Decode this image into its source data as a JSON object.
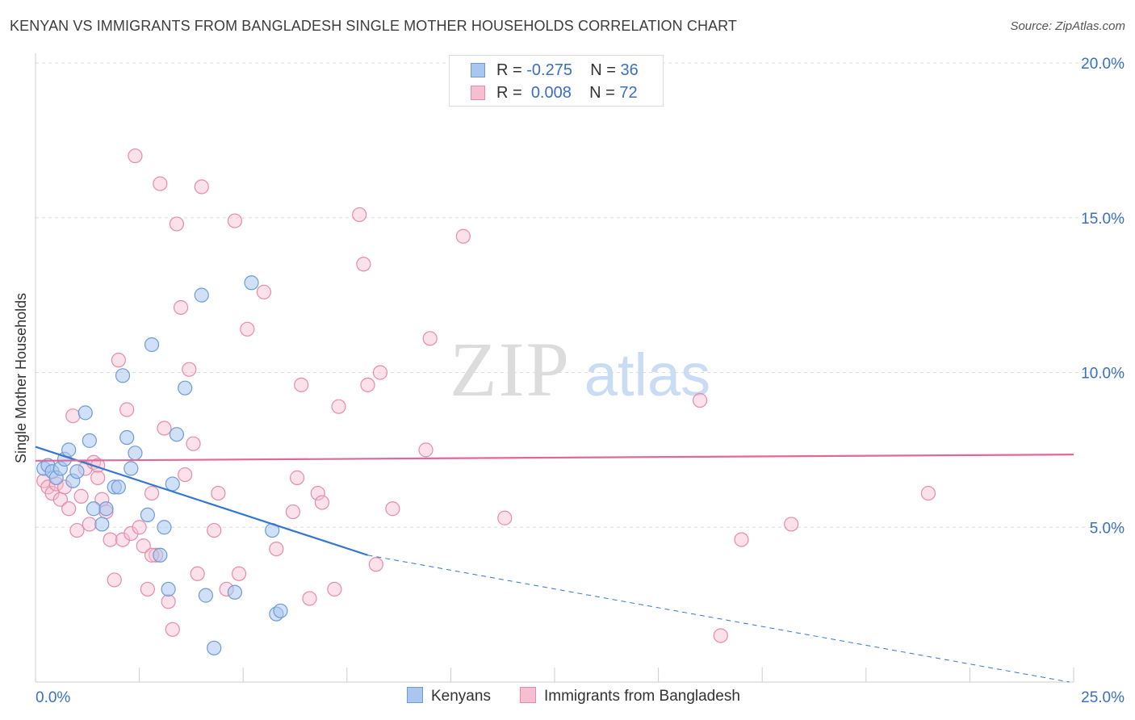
{
  "title": "KENYAN VS IMMIGRANTS FROM BANGLADESH SINGLE MOTHER HOUSEHOLDS CORRELATION CHART",
  "source": "Source: ZipAtlas.com",
  "watermark": {
    "zip": "ZIP",
    "atlas": "atlas"
  },
  "legend": {
    "r_label": "R =",
    "n_label": "N =",
    "kenyans": {
      "r": "-0.275",
      "n": "36"
    },
    "bangladesh": {
      "r": "0.008",
      "n": "72"
    }
  },
  "bottom_legend": {
    "kenyans": "Kenyans",
    "bangladesh": "Immigrants from Bangladesh"
  },
  "colors": {
    "blue_fill": "#a9c7ee",
    "blue_stroke": "#6d9bd8",
    "blue_line": "#3477d0",
    "pink_fill": "#f6bfd0",
    "pink_stroke": "#e88aab",
    "pink_line": "#e0699a",
    "tick_text": "#3a6fc4",
    "grid": "#dddddd"
  },
  "chart_data": {
    "type": "scatter",
    "title": "KENYAN VS IMMIGRANTS FROM BANGLADESH SINGLE MOTHER HOUSEHOLDS CORRELATION CHART",
    "xlabel": "",
    "ylabel": "Single Mother Households",
    "xlim": [
      0,
      25
    ],
    "ylim": [
      0,
      20
    ],
    "x_tick_labels": [
      "0.0%",
      "25.0%"
    ],
    "y_ticks": [
      5,
      10,
      15,
      20
    ],
    "y_tick_labels": [
      "5.0%",
      "10.0%",
      "15.0%",
      "20.0%"
    ],
    "grid": true,
    "series": [
      {
        "name": "Kenyans",
        "color": "#a9c7ee",
        "points": [
          [
            0.2,
            6.9
          ],
          [
            0.3,
            7.0
          ],
          [
            0.4,
            6.8
          ],
          [
            0.5,
            6.6
          ],
          [
            0.6,
            6.9
          ],
          [
            0.7,
            7.2
          ],
          [
            0.8,
            7.5
          ],
          [
            0.9,
            6.5
          ],
          [
            1.0,
            6.8
          ],
          [
            1.2,
            8.7
          ],
          [
            1.3,
            7.8
          ],
          [
            1.4,
            5.6
          ],
          [
            1.6,
            5.1
          ],
          [
            1.7,
            5.6
          ],
          [
            1.9,
            6.3
          ],
          [
            2.1,
            9.9
          ],
          [
            2.2,
            7.9
          ],
          [
            2.3,
            6.9
          ],
          [
            2.4,
            7.4
          ],
          [
            2.7,
            5.4
          ],
          [
            2.8,
            10.9
          ],
          [
            3.0,
            4.1
          ],
          [
            3.1,
            5.0
          ],
          [
            3.2,
            3.0
          ],
          [
            3.3,
            6.4
          ],
          [
            3.4,
            8.0
          ],
          [
            3.6,
            9.5
          ],
          [
            4.0,
            12.5
          ],
          [
            4.1,
            2.8
          ],
          [
            4.3,
            1.1
          ],
          [
            4.8,
            2.9
          ],
          [
            5.2,
            12.9
          ],
          [
            5.7,
            4.9
          ],
          [
            5.8,
            2.2
          ],
          [
            5.9,
            2.3
          ],
          [
            2.0,
            6.3
          ]
        ],
        "trend": {
          "x": [
            0,
            8.0
          ],
          "y": [
            7.6,
            4.1
          ],
          "dashed_extension_to": [
            24.9,
            0
          ]
        }
      },
      {
        "name": "Immigrants from Bangladesh",
        "color": "#f6bfd0",
        "points": [
          [
            0.2,
            6.5
          ],
          [
            0.3,
            6.3
          ],
          [
            0.4,
            6.1
          ],
          [
            0.5,
            6.4
          ],
          [
            0.6,
            5.9
          ],
          [
            0.7,
            6.3
          ],
          [
            0.8,
            5.6
          ],
          [
            0.9,
            8.6
          ],
          [
            1.0,
            4.9
          ],
          [
            1.1,
            6.0
          ],
          [
            1.2,
            6.9
          ],
          [
            1.3,
            5.1
          ],
          [
            1.4,
            7.1
          ],
          [
            1.5,
            6.6
          ],
          [
            1.6,
            5.9
          ],
          [
            1.7,
            5.5
          ],
          [
            1.8,
            4.6
          ],
          [
            1.9,
            3.3
          ],
          [
            2.0,
            10.4
          ],
          [
            2.1,
            4.6
          ],
          [
            2.2,
            8.8
          ],
          [
            2.3,
            4.8
          ],
          [
            2.4,
            17.0
          ],
          [
            2.5,
            5.0
          ],
          [
            2.6,
            4.4
          ],
          [
            2.7,
            3.0
          ],
          [
            2.8,
            6.1
          ],
          [
            2.9,
            4.1
          ],
          [
            3.0,
            16.1
          ],
          [
            3.1,
            8.2
          ],
          [
            3.2,
            2.6
          ],
          [
            3.3,
            1.7
          ],
          [
            3.4,
            14.8
          ],
          [
            3.5,
            12.1
          ],
          [
            3.6,
            6.7
          ],
          [
            3.7,
            10.1
          ],
          [
            3.8,
            7.7
          ],
          [
            3.9,
            3.5
          ],
          [
            4.0,
            16.0
          ],
          [
            4.3,
            4.9
          ],
          [
            4.4,
            6.1
          ],
          [
            4.6,
            3.0
          ],
          [
            4.8,
            14.9
          ],
          [
            4.9,
            3.5
          ],
          [
            5.1,
            11.4
          ],
          [
            5.5,
            12.6
          ],
          [
            5.8,
            4.3
          ],
          [
            6.2,
            5.5
          ],
          [
            6.3,
            6.6
          ],
          [
            6.4,
            9.6
          ],
          [
            6.6,
            2.7
          ],
          [
            6.8,
            6.1
          ],
          [
            6.9,
            5.8
          ],
          [
            7.2,
            3.0
          ],
          [
            7.3,
            8.9
          ],
          [
            7.8,
            15.1
          ],
          [
            7.9,
            13.5
          ],
          [
            8.0,
            9.6
          ],
          [
            8.2,
            3.8
          ],
          [
            8.3,
            10.0
          ],
          [
            8.6,
            5.6
          ],
          [
            9.4,
            7.5
          ],
          [
            9.5,
            11.1
          ],
          [
            10.3,
            14.4
          ],
          [
            11.3,
            5.3
          ],
          [
            16.0,
            9.1
          ],
          [
            16.5,
            1.5
          ],
          [
            17.0,
            4.6
          ],
          [
            18.2,
            5.1
          ],
          [
            21.5,
            6.1
          ],
          [
            1.5,
            7.0
          ],
          [
            2.8,
            4.1
          ]
        ],
        "trend": {
          "x": [
            0,
            25.0
          ],
          "y": [
            7.15,
            7.35
          ]
        }
      }
    ]
  }
}
